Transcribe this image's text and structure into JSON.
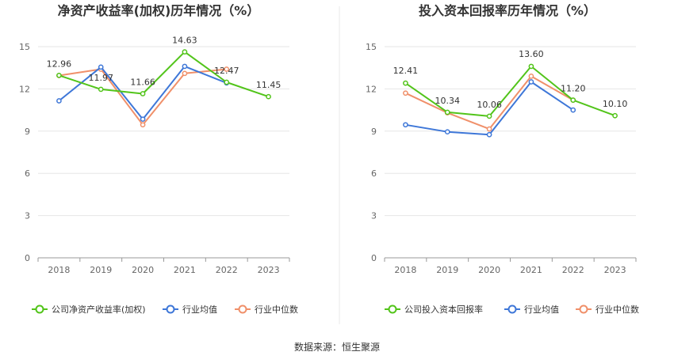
{
  "source_label": "数据来源：恒生聚源",
  "chart_data": [
    {
      "type": "line",
      "title": "净资产收益率(加权)历年情况（%）",
      "x": [
        "2018",
        "2019",
        "2020",
        "2021",
        "2022",
        "2023"
      ],
      "ylim": [
        0,
        15
      ],
      "yticks": [
        0,
        3,
        6,
        9,
        12,
        15
      ],
      "grid": true,
      "legend_position": "bottom",
      "series": [
        {
          "name": "公司净资产收益率(加权)",
          "color": "#52c41a",
          "values": [
            12.96,
            11.97,
            11.66,
            14.63,
            12.47,
            11.45
          ],
          "labeled": true
        },
        {
          "name": "行业均值",
          "color": "#3e77d8",
          "values": [
            11.15,
            13.55,
            9.85,
            13.6,
            12.42,
            null
          ],
          "labeled": false
        },
        {
          "name": "行业中位数",
          "color": "#f0906a",
          "values": [
            12.95,
            13.4,
            9.45,
            13.1,
            13.4,
            null
          ],
          "labeled": false
        }
      ]
    },
    {
      "type": "line",
      "title": "投入资本回报率历年情况（%）",
      "x": [
        "2018",
        "2019",
        "2020",
        "2021",
        "2022",
        "2023"
      ],
      "ylim": [
        0,
        15
      ],
      "yticks": [
        0,
        3,
        6,
        9,
        12,
        15
      ],
      "grid": true,
      "legend_position": "bottom",
      "series": [
        {
          "name": "公司投入资本回报率",
          "color": "#52c41a",
          "values": [
            12.41,
            10.34,
            10.06,
            13.6,
            11.2,
            10.1
          ],
          "labeled": true
        },
        {
          "name": "行业均值",
          "color": "#3e77d8",
          "values": [
            9.45,
            8.95,
            8.75,
            12.5,
            10.5,
            null
          ],
          "labeled": false
        },
        {
          "name": "行业中位数",
          "color": "#f0906a",
          "values": [
            11.7,
            10.3,
            9.15,
            12.9,
            11.2,
            null
          ],
          "labeled": false
        }
      ]
    }
  ]
}
